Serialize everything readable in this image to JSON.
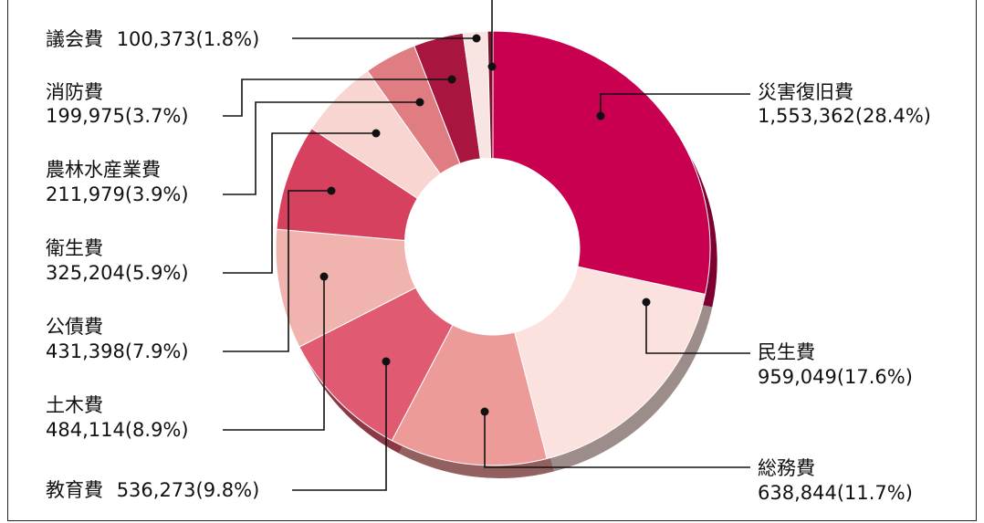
{
  "chart_data": {
    "type": "pie",
    "donut": true,
    "title": "",
    "slices": [
      {
        "name": "災害復旧費",
        "value": 1553362,
        "percent": 28.4,
        "color": "#c8004f"
      },
      {
        "name": "民生費",
        "value": 959049,
        "percent": 17.6,
        "color": "#fbe2de"
      },
      {
        "name": "総務費",
        "value": 638844,
        "percent": 11.7,
        "color": "#ec9b98"
      },
      {
        "name": "教育費",
        "value": 536273,
        "percent": 9.8,
        "color": "#e05a72"
      },
      {
        "name": "土木費",
        "value": 484114,
        "percent": 8.9,
        "color": "#f1b3ae"
      },
      {
        "name": "公債費",
        "value": 431398,
        "percent": 7.9,
        "color": "#d6415f"
      },
      {
        "name": "衛生費",
        "value": 325204,
        "percent": 5.9,
        "color": "#f8d5d1"
      },
      {
        "name": "農林水産業費",
        "value": 211979,
        "percent": 3.9,
        "color": "#e07d83"
      },
      {
        "name": "消防費",
        "value": 199975,
        "percent": 3.7,
        "color": "#a8163f"
      },
      {
        "name": "議会費",
        "value": 100373,
        "percent": 1.8,
        "color": "#f8e4e1"
      },
      {
        "name": "",
        "value": null,
        "percent": 0.4,
        "color": "#7e0f2e"
      }
    ],
    "labels": [
      {
        "name": "議会費",
        "value_text": "100,373(1.8%)"
      },
      {
        "name": "消防費",
        "value_text": "199,975(3.7%)"
      },
      {
        "name": "農林水産業費",
        "value_text": "211,979(3.9%)"
      },
      {
        "name": "衛生費",
        "value_text": "325,204(5.9%)"
      },
      {
        "name": "公債費",
        "value_text": "431,398(7.9%)"
      },
      {
        "name": "土木費",
        "value_text": "484,114(8.9%)"
      },
      {
        "name": "教育費",
        "value_text": "536,273(9.8%)"
      },
      {
        "name": "災害復旧費",
        "value_text": "1,553,362(28.4%)"
      },
      {
        "name": "民生費",
        "value_text": "959,049(17.6%)"
      },
      {
        "name": "総務費",
        "value_text": "638,844(11.7%)"
      }
    ]
  }
}
